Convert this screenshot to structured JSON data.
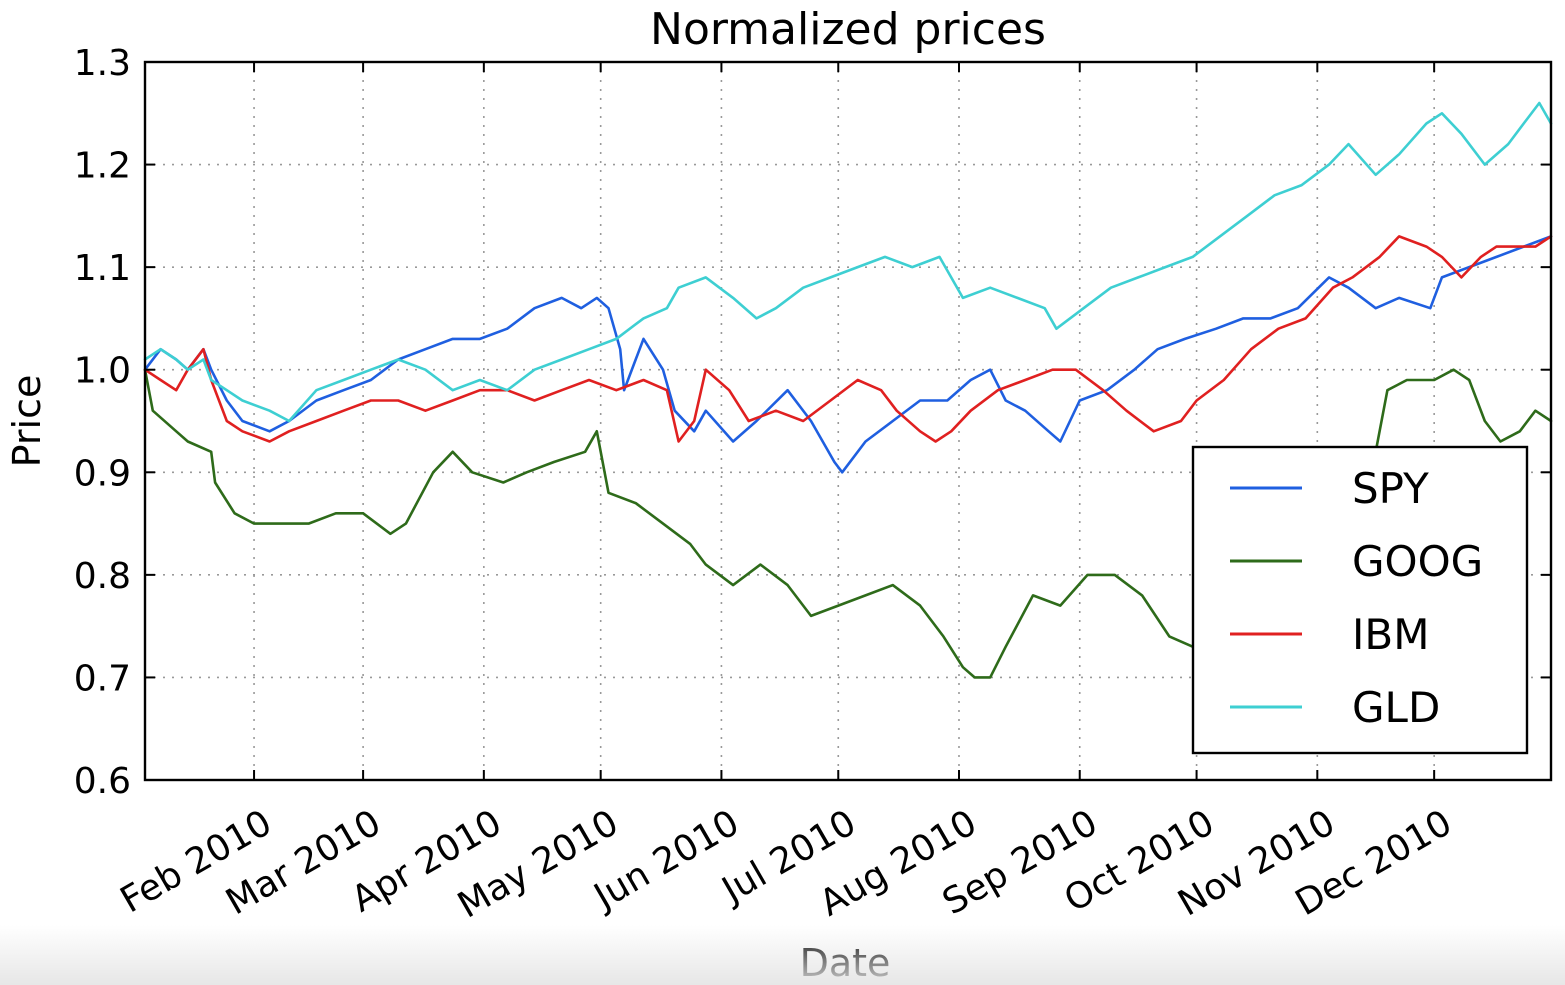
{
  "chart_data": {
    "type": "line",
    "title": "Normalized prices",
    "xlabel": "Date",
    "ylabel": "Price",
    "ylim": [
      0.6,
      1.3
    ],
    "xlim": [
      "2010-01-04",
      "2010-12-31"
    ],
    "y_ticks": [
      "0.6",
      "0.7",
      "0.8",
      "0.9",
      "1.0",
      "1.1",
      "1.2",
      "1.3"
    ],
    "x_ticks": [
      {
        "date": "2010-02-01",
        "label": "Feb 2010"
      },
      {
        "date": "2010-03-01",
        "label": "Mar 2010"
      },
      {
        "date": "2010-04-01",
        "label": "Apr 2010"
      },
      {
        "date": "2010-05-01",
        "label": "May 2010"
      },
      {
        "date": "2010-06-01",
        "label": "Jun 2010"
      },
      {
        "date": "2010-07-01",
        "label": "Jul 2010"
      },
      {
        "date": "2010-08-01",
        "label": "Aug 2010"
      },
      {
        "date": "2010-09-01",
        "label": "Sep 2010"
      },
      {
        "date": "2010-10-01",
        "label": "Oct 2010"
      },
      {
        "date": "2010-11-01",
        "label": "Nov 2010"
      },
      {
        "date": "2010-12-01",
        "label": "Dec 2010"
      }
    ],
    "grid": true,
    "legend_position": "lower-right",
    "series": [
      {
        "name": "SPY",
        "color": "#1f5fe0",
        "points": [
          [
            "2010-01-04",
            1.0
          ],
          [
            "2010-01-08",
            1.02
          ],
          [
            "2010-01-12",
            1.01
          ],
          [
            "2010-01-15",
            1.0
          ],
          [
            "2010-01-19",
            1.02
          ],
          [
            "2010-01-21",
            1.0
          ],
          [
            "2010-01-25",
            0.97
          ],
          [
            "2010-01-29",
            0.95
          ],
          [
            "2010-02-05",
            0.94
          ],
          [
            "2010-02-10",
            0.95
          ],
          [
            "2010-02-17",
            0.97
          ],
          [
            "2010-02-24",
            0.98
          ],
          [
            "2010-03-03",
            0.99
          ],
          [
            "2010-03-10",
            1.01
          ],
          [
            "2010-03-17",
            1.02
          ],
          [
            "2010-03-24",
            1.03
          ],
          [
            "2010-03-31",
            1.03
          ],
          [
            "2010-04-07",
            1.04
          ],
          [
            "2010-04-14",
            1.06
          ],
          [
            "2010-04-21",
            1.07
          ],
          [
            "2010-04-26",
            1.06
          ],
          [
            "2010-04-30",
            1.07
          ],
          [
            "2010-05-03",
            1.06
          ],
          [
            "2010-05-06",
            1.02
          ],
          [
            "2010-05-07",
            0.98
          ],
          [
            "2010-05-12",
            1.03
          ],
          [
            "2010-05-17",
            1.0
          ],
          [
            "2010-05-20",
            0.96
          ],
          [
            "2010-05-25",
            0.94
          ],
          [
            "2010-05-28",
            0.96
          ],
          [
            "2010-06-04",
            0.93
          ],
          [
            "2010-06-10",
            0.95
          ],
          [
            "2010-06-18",
            0.98
          ],
          [
            "2010-06-24",
            0.95
          ],
          [
            "2010-06-30",
            0.91
          ],
          [
            "2010-07-02",
            0.9
          ],
          [
            "2010-07-08",
            0.93
          ],
          [
            "2010-07-15",
            0.95
          ],
          [
            "2010-07-22",
            0.97
          ],
          [
            "2010-07-29",
            0.97
          ],
          [
            "2010-08-04",
            0.99
          ],
          [
            "2010-08-09",
            1.0
          ],
          [
            "2010-08-13",
            0.97
          ],
          [
            "2010-08-18",
            0.96
          ],
          [
            "2010-08-24",
            0.94
          ],
          [
            "2010-08-27",
            0.93
          ],
          [
            "2010-09-01",
            0.97
          ],
          [
            "2010-09-08",
            0.98
          ],
          [
            "2010-09-15",
            1.0
          ],
          [
            "2010-09-21",
            1.02
          ],
          [
            "2010-09-28",
            1.03
          ],
          [
            "2010-10-06",
            1.04
          ],
          [
            "2010-10-13",
            1.05
          ],
          [
            "2010-10-20",
            1.05
          ],
          [
            "2010-10-27",
            1.06
          ],
          [
            "2010-11-04",
            1.09
          ],
          [
            "2010-11-09",
            1.08
          ],
          [
            "2010-11-16",
            1.06
          ],
          [
            "2010-11-22",
            1.07
          ],
          [
            "2010-11-30",
            1.06
          ],
          [
            "2010-12-03",
            1.09
          ],
          [
            "2010-12-10",
            1.1
          ],
          [
            "2010-12-17",
            1.11
          ],
          [
            "2010-12-24",
            1.12
          ],
          [
            "2010-12-31",
            1.13
          ]
        ]
      },
      {
        "name": "GOOG",
        "color": "#2e6b1a",
        "points": [
          [
            "2010-01-04",
            1.0
          ],
          [
            "2010-01-06",
            0.96
          ],
          [
            "2010-01-12",
            0.94
          ],
          [
            "2010-01-15",
            0.93
          ],
          [
            "2010-01-21",
            0.92
          ],
          [
            "2010-01-22",
            0.89
          ],
          [
            "2010-01-27",
            0.86
          ],
          [
            "2010-02-01",
            0.85
          ],
          [
            "2010-02-08",
            0.85
          ],
          [
            "2010-02-15",
            0.85
          ],
          [
            "2010-02-22",
            0.86
          ],
          [
            "2010-03-01",
            0.86
          ],
          [
            "2010-03-08",
            0.84
          ],
          [
            "2010-03-12",
            0.85
          ],
          [
            "2010-03-19",
            0.9
          ],
          [
            "2010-03-24",
            0.92
          ],
          [
            "2010-03-29",
            0.9
          ],
          [
            "2010-04-06",
            0.89
          ],
          [
            "2010-04-12",
            0.9
          ],
          [
            "2010-04-19",
            0.91
          ],
          [
            "2010-04-27",
            0.92
          ],
          [
            "2010-04-30",
            0.94
          ],
          [
            "2010-05-03",
            0.88
          ],
          [
            "2010-05-10",
            0.87
          ],
          [
            "2010-05-17",
            0.85
          ],
          [
            "2010-05-24",
            0.83
          ],
          [
            "2010-05-28",
            0.81
          ],
          [
            "2010-06-04",
            0.79
          ],
          [
            "2010-06-11",
            0.81
          ],
          [
            "2010-06-18",
            0.79
          ],
          [
            "2010-06-24",
            0.76
          ],
          [
            "2010-07-01",
            0.77
          ],
          [
            "2010-07-08",
            0.78
          ],
          [
            "2010-07-15",
            0.79
          ],
          [
            "2010-07-22",
            0.77
          ],
          [
            "2010-07-28",
            0.74
          ],
          [
            "2010-08-02",
            0.71
          ],
          [
            "2010-08-05",
            0.7
          ],
          [
            "2010-08-09",
            0.7
          ],
          [
            "2010-08-13",
            0.73
          ],
          [
            "2010-08-20",
            0.78
          ],
          [
            "2010-08-27",
            0.77
          ],
          [
            "2010-09-03",
            0.8
          ],
          [
            "2010-09-10",
            0.8
          ],
          [
            "2010-09-17",
            0.78
          ],
          [
            "2010-09-24",
            0.74
          ],
          [
            "2010-09-30",
            0.73
          ],
          [
            "2010-10-06",
            0.72
          ],
          [
            "2010-10-13",
            0.75
          ],
          [
            "2010-10-20",
            0.77
          ],
          [
            "2010-10-27",
            0.82
          ],
          [
            "2010-11-03",
            0.85
          ],
          [
            "2010-11-08",
            0.84
          ],
          [
            "2010-11-15",
            0.9
          ],
          [
            "2010-11-19",
            0.98
          ],
          [
            "2010-11-24",
            0.99
          ],
          [
            "2010-12-01",
            0.99
          ],
          [
            "2010-12-06",
            1.0
          ],
          [
            "2010-12-10",
            0.99
          ],
          [
            "2010-12-14",
            0.95
          ],
          [
            "2010-12-18",
            0.93
          ],
          [
            "2010-12-23",
            0.94
          ],
          [
            "2010-12-27",
            0.96
          ],
          [
            "2010-12-31",
            0.95
          ]
        ]
      },
      {
        "name": "IBM",
        "color": "#e02020",
        "points": [
          [
            "2010-01-04",
            1.0
          ],
          [
            "2010-01-08",
            0.99
          ],
          [
            "2010-01-12",
            0.98
          ],
          [
            "2010-01-15",
            1.0
          ],
          [
            "2010-01-19",
            1.02
          ],
          [
            "2010-01-21",
            0.99
          ],
          [
            "2010-01-25",
            0.95
          ],
          [
            "2010-01-29",
            0.94
          ],
          [
            "2010-02-05",
            0.93
          ],
          [
            "2010-02-10",
            0.94
          ],
          [
            "2010-02-17",
            0.95
          ],
          [
            "2010-02-24",
            0.96
          ],
          [
            "2010-03-03",
            0.97
          ],
          [
            "2010-03-10",
            0.97
          ],
          [
            "2010-03-17",
            0.96
          ],
          [
            "2010-03-24",
            0.97
          ],
          [
            "2010-03-31",
            0.98
          ],
          [
            "2010-04-07",
            0.98
          ],
          [
            "2010-04-14",
            0.97
          ],
          [
            "2010-04-21",
            0.98
          ],
          [
            "2010-04-28",
            0.99
          ],
          [
            "2010-05-05",
            0.98
          ],
          [
            "2010-05-12",
            0.99
          ],
          [
            "2010-05-18",
            0.98
          ],
          [
            "2010-05-21",
            0.93
          ],
          [
            "2010-05-25",
            0.95
          ],
          [
            "2010-05-28",
            1.0
          ],
          [
            "2010-06-03",
            0.98
          ],
          [
            "2010-06-08",
            0.95
          ],
          [
            "2010-06-15",
            0.96
          ],
          [
            "2010-06-22",
            0.95
          ],
          [
            "2010-06-29",
            0.97
          ],
          [
            "2010-07-06",
            0.99
          ],
          [
            "2010-07-12",
            0.98
          ],
          [
            "2010-07-16",
            0.96
          ],
          [
            "2010-07-22",
            0.94
          ],
          [
            "2010-07-26",
            0.93
          ],
          [
            "2010-07-30",
            0.94
          ],
          [
            "2010-08-04",
            0.96
          ],
          [
            "2010-08-11",
            0.98
          ],
          [
            "2010-08-18",
            0.99
          ],
          [
            "2010-08-25",
            1.0
          ],
          [
            "2010-08-31",
            1.0
          ],
          [
            "2010-09-07",
            0.98
          ],
          [
            "2010-09-13",
            0.96
          ],
          [
            "2010-09-20",
            0.94
          ],
          [
            "2010-09-27",
            0.95
          ],
          [
            "2010-10-01",
            0.97
          ],
          [
            "2010-10-08",
            0.99
          ],
          [
            "2010-10-15",
            1.02
          ],
          [
            "2010-10-22",
            1.04
          ],
          [
            "2010-10-29",
            1.05
          ],
          [
            "2010-11-05",
            1.08
          ],
          [
            "2010-11-10",
            1.09
          ],
          [
            "2010-11-17",
            1.11
          ],
          [
            "2010-11-22",
            1.13
          ],
          [
            "2010-11-29",
            1.12
          ],
          [
            "2010-12-03",
            1.11
          ],
          [
            "2010-12-08",
            1.09
          ],
          [
            "2010-12-13",
            1.11
          ],
          [
            "2010-12-17",
            1.12
          ],
          [
            "2010-12-22",
            1.12
          ],
          [
            "2010-12-27",
            1.12
          ],
          [
            "2010-12-31",
            1.13
          ]
        ]
      },
      {
        "name": "GLD",
        "color": "#3ecfd2",
        "points": [
          [
            "2010-01-04",
            1.01
          ],
          [
            "2010-01-08",
            1.02
          ],
          [
            "2010-01-12",
            1.01
          ],
          [
            "2010-01-15",
            1.0
          ],
          [
            "2010-01-19",
            1.01
          ],
          [
            "2010-01-21",
            0.99
          ],
          [
            "2010-01-25",
            0.98
          ],
          [
            "2010-01-29",
            0.97
          ],
          [
            "2010-02-05",
            0.96
          ],
          [
            "2010-02-10",
            0.95
          ],
          [
            "2010-02-17",
            0.98
          ],
          [
            "2010-02-24",
            0.99
          ],
          [
            "2010-03-03",
            1.0
          ],
          [
            "2010-03-10",
            1.01
          ],
          [
            "2010-03-17",
            1.0
          ],
          [
            "2010-03-24",
            0.98
          ],
          [
            "2010-03-31",
            0.99
          ],
          [
            "2010-04-07",
            0.98
          ],
          [
            "2010-04-14",
            1.0
          ],
          [
            "2010-04-21",
            1.01
          ],
          [
            "2010-04-28",
            1.02
          ],
          [
            "2010-05-05",
            1.03
          ],
          [
            "2010-05-12",
            1.05
          ],
          [
            "2010-05-18",
            1.06
          ],
          [
            "2010-05-21",
            1.08
          ],
          [
            "2010-05-28",
            1.09
          ],
          [
            "2010-06-04",
            1.07
          ],
          [
            "2010-06-10",
            1.05
          ],
          [
            "2010-06-15",
            1.06
          ],
          [
            "2010-06-22",
            1.08
          ],
          [
            "2010-06-29",
            1.09
          ],
          [
            "2010-07-06",
            1.1
          ],
          [
            "2010-07-13",
            1.11
          ],
          [
            "2010-07-20",
            1.1
          ],
          [
            "2010-07-27",
            1.11
          ],
          [
            "2010-08-02",
            1.07
          ],
          [
            "2010-08-09",
            1.08
          ],
          [
            "2010-08-16",
            1.07
          ],
          [
            "2010-08-23",
            1.06
          ],
          [
            "2010-08-26",
            1.04
          ],
          [
            "2010-09-02",
            1.06
          ],
          [
            "2010-09-09",
            1.08
          ],
          [
            "2010-09-16",
            1.09
          ],
          [
            "2010-09-23",
            1.1
          ],
          [
            "2010-09-30",
            1.11
          ],
          [
            "2010-10-07",
            1.13
          ],
          [
            "2010-10-14",
            1.15
          ],
          [
            "2010-10-21",
            1.17
          ],
          [
            "2010-10-28",
            1.18
          ],
          [
            "2010-11-04",
            1.2
          ],
          [
            "2010-11-09",
            1.22
          ],
          [
            "2010-11-16",
            1.19
          ],
          [
            "2010-11-22",
            1.21
          ],
          [
            "2010-11-29",
            1.24
          ],
          [
            "2010-12-03",
            1.25
          ],
          [
            "2010-12-08",
            1.23
          ],
          [
            "2010-12-14",
            1.2
          ],
          [
            "2010-12-20",
            1.22
          ],
          [
            "2010-12-24",
            1.24
          ],
          [
            "2010-12-28",
            1.26
          ],
          [
            "2010-12-31",
            1.24
          ]
        ]
      }
    ]
  }
}
